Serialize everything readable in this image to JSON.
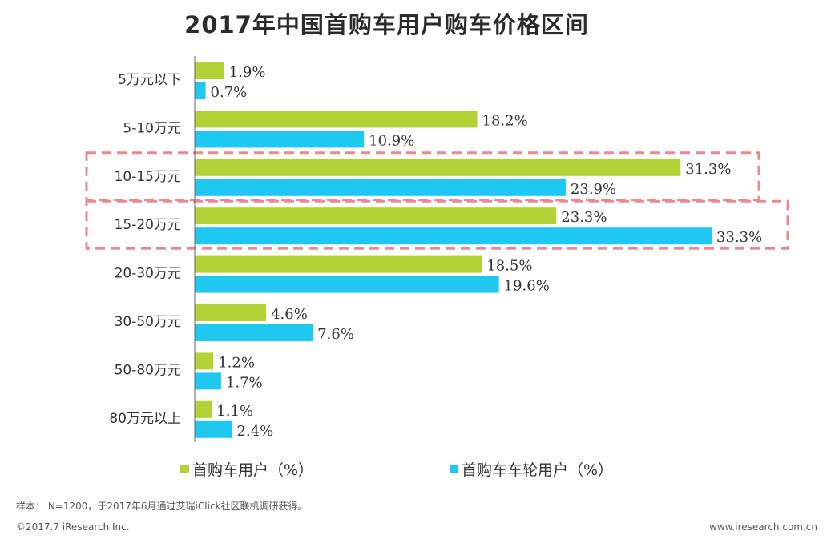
{
  "chart_data": {
    "type": "bar",
    "orientation": "horizontal",
    "title": "2017年中国首购车用户购车价格区间",
    "categories": [
      "5万元以下",
      "5-10万元",
      "10-15万元",
      "15-20万元",
      "20-30万元",
      "30-50万元",
      "50-80万元",
      "80万元以上"
    ],
    "series": [
      {
        "name": "首购车用户（%）",
        "color": "#b2d235",
        "values": [
          1.9,
          18.2,
          31.3,
          23.3,
          18.5,
          4.6,
          1.2,
          1.1
        ],
        "labels": [
          "1.9%",
          "18.2%",
          "31.3%",
          "23.3%",
          "18.5%",
          "4.6%",
          "1.2%",
          "1.1%"
        ]
      },
      {
        "name": "首购车车轮用户（%）",
        "color": "#1ec8f0",
        "values": [
          0.7,
          10.9,
          23.9,
          33.3,
          19.6,
          7.6,
          1.7,
          2.4
        ],
        "labels": [
          "0.7%",
          "10.9%",
          "23.9%",
          "33.3%",
          "19.6%",
          "7.6%",
          "1.7%",
          "2.4%"
        ]
      }
    ],
    "highlighted_categories": [
      "10-15万元",
      "15-20万元"
    ],
    "highlight_color": "#e88a8f",
    "xlim": [
      0,
      35
    ],
    "legend_position": "bottom",
    "grid": false
  },
  "note": "样本： N=1200，于2017年6月通过艾瑞iClick社区联机调研获得。",
  "footer": {
    "copyright": "©2017.7 iResearch Inc.",
    "website": "www.iresearch.com.cn"
  }
}
